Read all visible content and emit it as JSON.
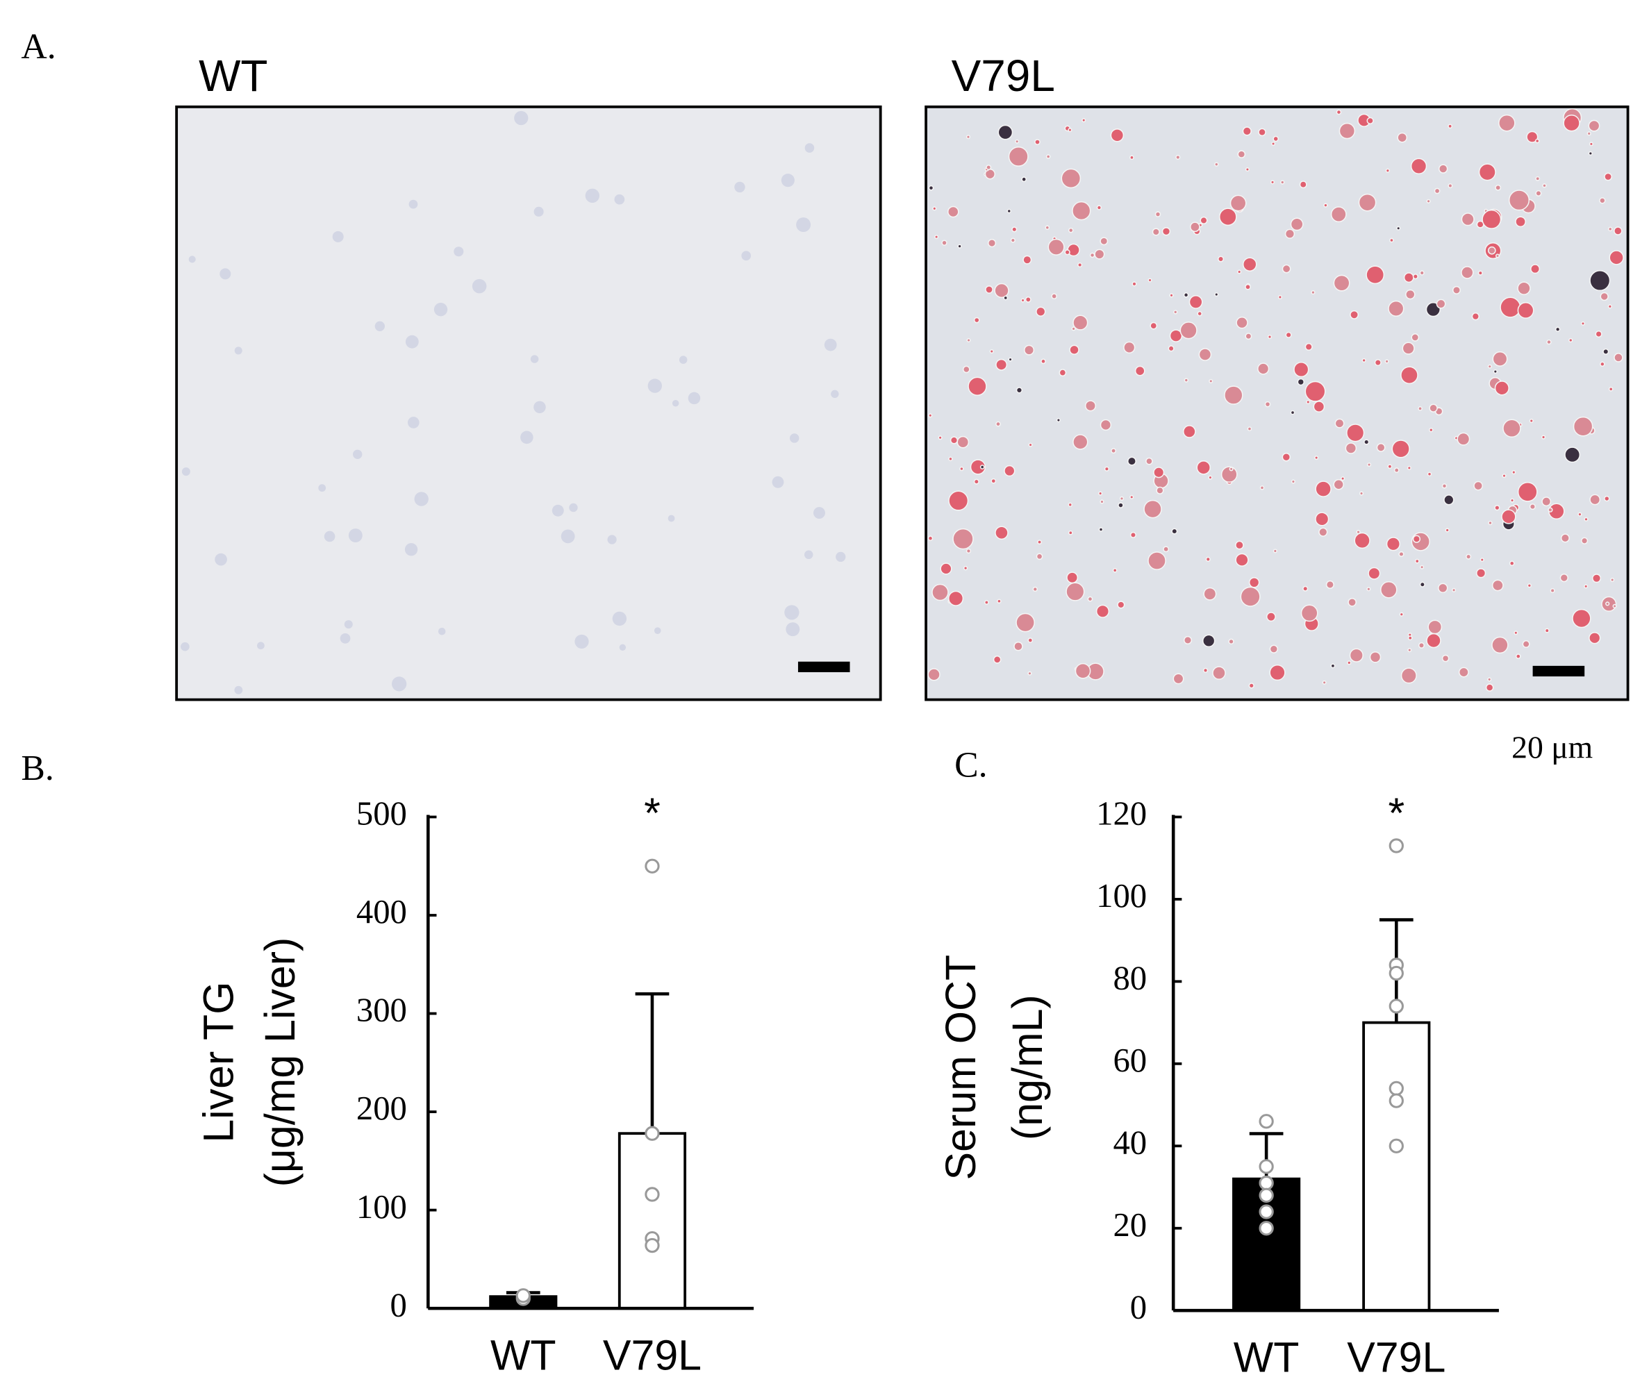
{
  "figure": {
    "panel_a": {
      "label": "A.",
      "images": [
        "WT",
        "V79L"
      ],
      "scale_bar": "20 μm"
    }
  },
  "chart_data": [
    {
      "type": "bar",
      "panel_label": "B.",
      "ylabel": [
        "Liver TG",
        "(μg/mg Liver)"
      ],
      "categories": [
        "WT",
        "V79L"
      ],
      "values": [
        12,
        178
      ],
      "errors": [
        4,
        142
      ],
      "colors": [
        "#000000",
        "#ffffff"
      ],
      "points": [
        [
          10,
          13
        ],
        [
          450,
          178,
          116,
          71,
          64
        ]
      ],
      "significance_labels": [
        null,
        "*"
      ],
      "ylim": [
        0,
        500
      ],
      "yticks": [
        0,
        100,
        200,
        300,
        400,
        500
      ]
    },
    {
      "type": "bar",
      "panel_label": "C.",
      "ylabel": [
        "Serum OCT",
        "(ng/mL)"
      ],
      "categories": [
        "WT",
        "V79L"
      ],
      "values": [
        32,
        70
      ],
      "errors": [
        11,
        25
      ],
      "colors": [
        "#000000",
        "#ffffff"
      ],
      "points": [
        [
          46,
          35,
          31,
          28,
          24,
          20
        ],
        [
          113,
          84,
          82,
          74,
          54,
          51,
          40
        ]
      ],
      "significance_labels": [
        null,
        "*"
      ],
      "ylim": [
        0,
        120
      ],
      "yticks": [
        0,
        20,
        40,
        60,
        80,
        100,
        120
      ]
    }
  ]
}
